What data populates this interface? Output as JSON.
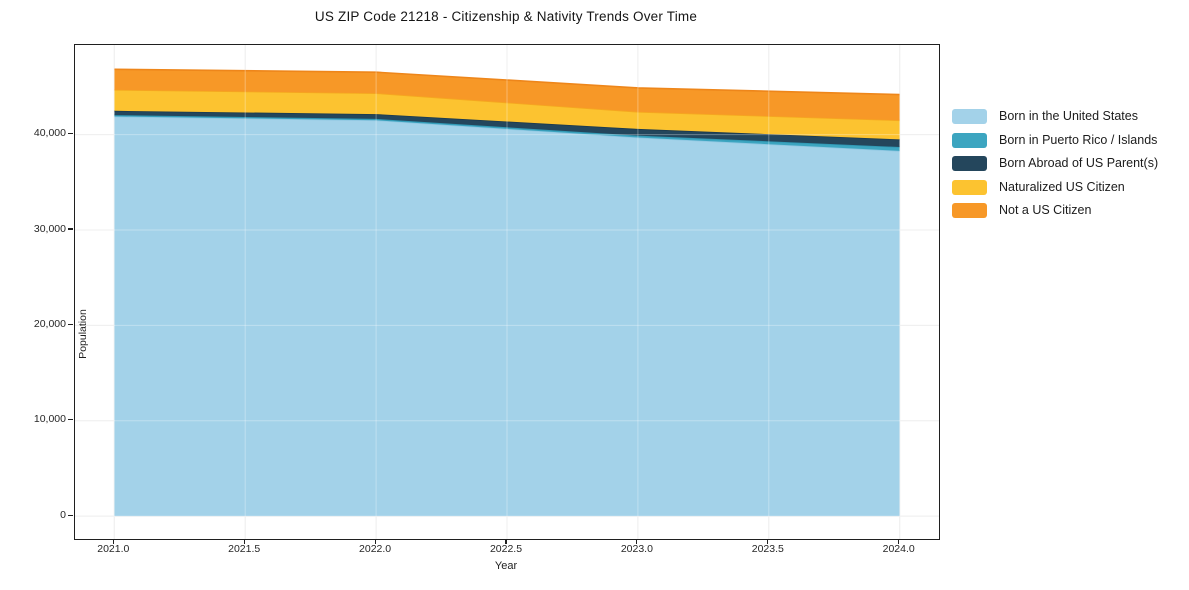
{
  "title": "US ZIP Code 21218 - Citizenship & Nativity Trends Over Time",
  "chart_data": {
    "type": "area",
    "stacked": true,
    "title": "US ZIP Code 21218 - Citizenship & Nativity Trends Over Time",
    "xlabel": "Year",
    "ylabel": "Population",
    "x": [
      2021,
      2022,
      2023,
      2024
    ],
    "series": [
      {
        "name": "Born in the United States",
        "color": "#a3d2e9",
        "edge": "#8fc7e2",
        "values": [
          41900,
          41500,
          39700,
          38300
        ]
      },
      {
        "name": "Born in Puerto Rico / Islands",
        "color": "#3ca5c0",
        "edge": "#2f96b2",
        "values": [
          150,
          150,
          200,
          400
        ]
      },
      {
        "name": "Born Abroad of US Parent(s)",
        "color": "#24465c",
        "edge": "#1c3a4e",
        "values": [
          450,
          500,
          700,
          800
        ]
      },
      {
        "name": "Naturalized US Citizen",
        "color": "#fcc330",
        "edge": "#f5a81f",
        "values": [
          2200,
          2200,
          1800,
          2000
        ]
      },
      {
        "name": "Not a US Citizen",
        "color": "#f79827",
        "edge": "#ee861a",
        "values": [
          2150,
          2200,
          2500,
          2700
        ]
      }
    ],
    "totals": [
      46850,
      46550,
      44900,
      44200
    ],
    "x_tick_labels": [
      "2021.0",
      "2021.5",
      "2022.0",
      "2022.5",
      "2023.0",
      "2023.5",
      "2024.0"
    ],
    "x_tick_values": [
      2021,
      2021.5,
      2022,
      2022.5,
      2023,
      2023.5,
      2024
    ],
    "y_tick_labels": [
      "0",
      "10,000",
      "20,000",
      "30,000",
      "40,000"
    ],
    "y_tick_values": [
      0,
      10000,
      20000,
      30000,
      40000
    ],
    "xlim": [
      2020.85,
      2024.15
    ],
    "ylim": [
      -2400,
      49400
    ],
    "grid": true,
    "grid_color": "#e7e7e7",
    "legend_position": "right-outside"
  }
}
